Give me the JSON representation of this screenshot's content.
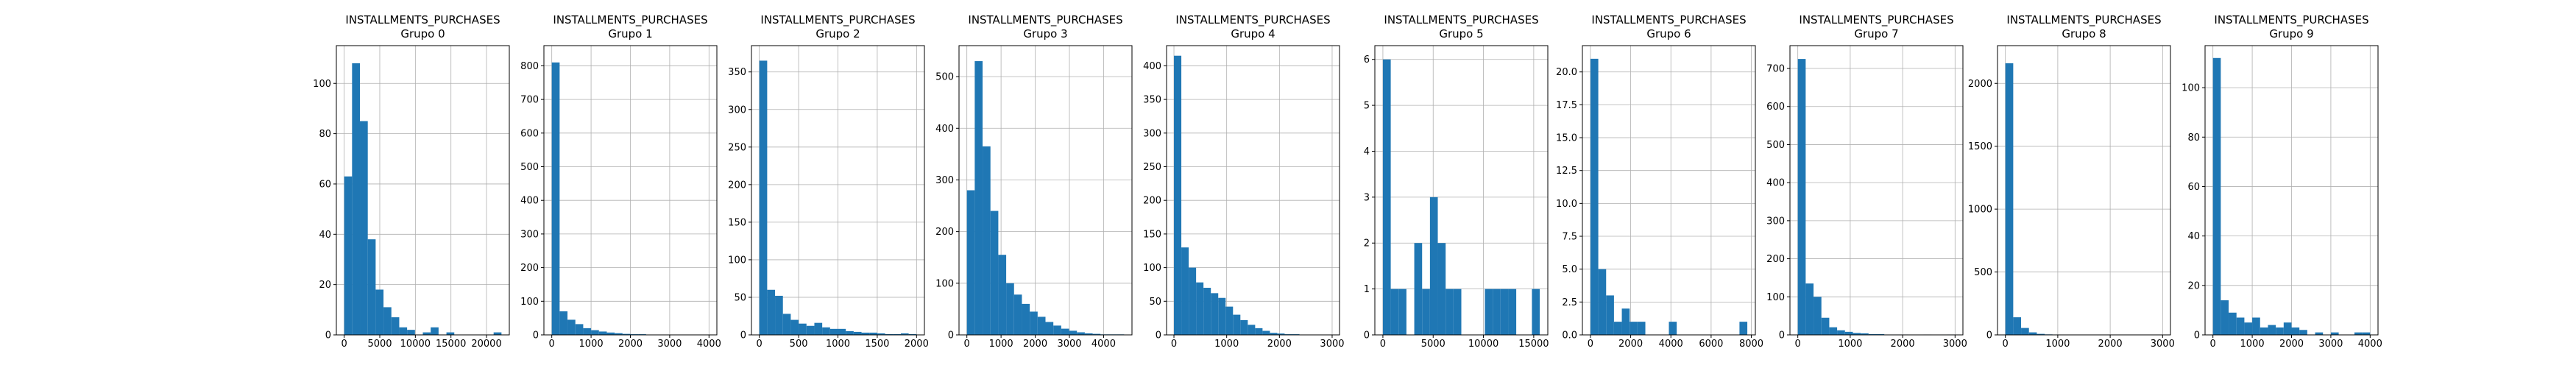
{
  "figure": {
    "background": "#ffffff",
    "bar_color": "#1f77b4",
    "grid_color": "#b0b0b0",
    "bins": 20
  },
  "chart_data": [
    {
      "type": "bar",
      "title_line1": "INSTALLMENTS_PURCHASES",
      "title_line2": "Grupo 0",
      "xlim": [
        -1100,
        23200
      ],
      "ylim": [
        0,
        115
      ],
      "xticks": [
        0,
        5000,
        10000,
        15000,
        20000
      ],
      "xtick_labels": [
        "0",
        "5000",
        "10000",
        "15000",
        "20000"
      ],
      "yticks": [
        0,
        20,
        40,
        60,
        80,
        100
      ],
      "ytick_labels": [
        "0",
        "20",
        "40",
        "60",
        "80",
        "100"
      ],
      "bin_width": 1105,
      "bin_edges_start": 0,
      "values": [
        63,
        108,
        85,
        38,
        18,
        11,
        7,
        3,
        2,
        0,
        1,
        3,
        0,
        1,
        0,
        0,
        0,
        0,
        0,
        1
      ]
    },
    {
      "type": "bar",
      "title_line1": "INSTALLMENTS_PURCHASES",
      "title_line2": "Grupo 1",
      "xlim": [
        -200,
        4200
      ],
      "ylim": [
        0,
        860
      ],
      "xticks": [
        0,
        1000,
        2000,
        3000,
        4000
      ],
      "xtick_labels": [
        "0",
        "1000",
        "2000",
        "3000",
        "4000"
      ],
      "yticks": [
        0,
        100,
        200,
        300,
        400,
        500,
        600,
        700,
        800
      ],
      "ytick_labels": [
        "0",
        "100",
        "200",
        "300",
        "400",
        "500",
        "600",
        "700",
        "800"
      ],
      "bin_width": 200,
      "bin_edges_start": 0,
      "values": [
        810,
        70,
        45,
        32,
        20,
        14,
        10,
        7,
        5,
        3,
        2,
        2,
        1,
        1,
        1,
        0,
        0,
        1,
        0,
        1
      ]
    },
    {
      "type": "bar",
      "title_line1": "INSTALLMENTS_PURCHASES",
      "title_line2": "Grupo 2",
      "xlim": [
        -100,
        2100
      ],
      "ylim": [
        0,
        385
      ],
      "xticks": [
        0,
        500,
        1000,
        1500,
        2000
      ],
      "xtick_labels": [
        "0",
        "500",
        "1000",
        "1500",
        "2000"
      ],
      "yticks": [
        0,
        50,
        100,
        150,
        200,
        250,
        300,
        350
      ],
      "ytick_labels": [
        "0",
        "50",
        "100",
        "150",
        "200",
        "250",
        "300",
        "350"
      ],
      "bin_width": 100,
      "bin_edges_start": 0,
      "values": [
        365,
        60,
        52,
        28,
        20,
        15,
        12,
        16,
        10,
        8,
        8,
        5,
        4,
        3,
        3,
        2,
        1,
        1,
        2,
        1
      ]
    },
    {
      "type": "bar",
      "title_line1": "INSTALLMENTS_PURCHASES",
      "title_line2": "Grupo 3",
      "xlim": [
        -230,
        4830
      ],
      "ylim": [
        0,
        560
      ],
      "xticks": [
        0,
        1000,
        2000,
        3000,
        4000
      ],
      "xtick_labels": [
        "0",
        "1000",
        "2000",
        "3000",
        "4000"
      ],
      "yticks": [
        0,
        100,
        200,
        300,
        400,
        500
      ],
      "ytick_labels": [
        "0",
        "100",
        "200",
        "300",
        "400",
        "500"
      ],
      "bin_width": 230,
      "bin_edges_start": 0,
      "values": [
        280,
        530,
        365,
        240,
        155,
        100,
        78,
        60,
        45,
        35,
        25,
        18,
        12,
        8,
        5,
        3,
        2,
        1,
        1,
        1
      ]
    },
    {
      "type": "bar",
      "title_line1": "INSTALLMENTS_PURCHASES",
      "title_line2": "Grupo 4",
      "xlim": [
        -140,
        3140
      ],
      "ylim": [
        0,
        430
      ],
      "xticks": [
        0,
        1000,
        2000,
        3000
      ],
      "xtick_labels": [
        "0",
        "1000",
        "2000",
        "3000"
      ],
      "yticks": [
        0,
        50,
        100,
        150,
        200,
        250,
        300,
        350,
        400
      ],
      "ytick_labels": [
        "0",
        "50",
        "100",
        "150",
        "200",
        "250",
        "300",
        "350",
        "400"
      ],
      "bin_width": 140,
      "bin_edges_start": 0,
      "values": [
        415,
        130,
        100,
        78,
        70,
        62,
        55,
        42,
        30,
        22,
        15,
        10,
        6,
        3,
        2,
        1,
        1,
        0,
        0,
        0
      ]
    },
    {
      "type": "bar",
      "title_line1": "INSTALLMENTS_PURCHASES",
      "title_line2": "Grupo 5",
      "xlim": [
        -800,
        16400
      ],
      "ylim": [
        0,
        6.3
      ],
      "xticks": [
        0,
        5000,
        10000,
        15000
      ],
      "xtick_labels": [
        "0",
        "5000",
        "10000",
        "15000"
      ],
      "yticks": [
        0,
        1,
        2,
        3,
        4,
        5,
        6
      ],
      "ytick_labels": [
        "0",
        "1",
        "2",
        "3",
        "4",
        "5",
        "6"
      ],
      "bin_width": 780,
      "bin_edges_start": 0,
      "values": [
        6,
        1,
        1,
        0,
        2,
        1,
        3,
        2,
        1,
        1,
        0,
        0,
        0,
        1,
        1,
        1,
        1,
        0,
        0,
        1
      ]
    },
    {
      "type": "bar",
      "title_line1": "INSTALLMENTS_PURCHASES",
      "title_line2": "Grupo 6",
      "xlim": [
        -400,
        8200
      ],
      "ylim": [
        0,
        22
      ],
      "xticks": [
        0,
        2000,
        4000,
        6000,
        8000
      ],
      "xtick_labels": [
        "0",
        "2000",
        "4000",
        "6000",
        "8000"
      ],
      "yticks": [
        0,
        2.5,
        5.0,
        7.5,
        10.0,
        12.5,
        15.0,
        17.5,
        20.0
      ],
      "ytick_labels": [
        "0.0",
        "2.5",
        "5.0",
        "7.5",
        "10.0",
        "12.5",
        "15.0",
        "17.5",
        "20.0"
      ],
      "bin_width": 390,
      "bin_edges_start": 0,
      "values": [
        21,
        5,
        3,
        1,
        2,
        1,
        1,
        0,
        0,
        0,
        1,
        0,
        0,
        0,
        0,
        0,
        0,
        0,
        0,
        1
      ]
    },
    {
      "type": "bar",
      "title_line1": "INSTALLMENTS_PURCHASES",
      "title_line2": "Grupo 7",
      "xlim": [
        -150,
        3150
      ],
      "ylim": [
        0,
        760
      ],
      "xticks": [
        0,
        1000,
        2000,
        3000
      ],
      "xtick_labels": [
        "0",
        "1000",
        "2000",
        "3000"
      ],
      "yticks": [
        0,
        100,
        200,
        300,
        400,
        500,
        600,
        700
      ],
      "ytick_labels": [
        "0",
        "100",
        "200",
        "300",
        "400",
        "500",
        "600",
        "700"
      ],
      "bin_width": 150,
      "bin_edges_start": 0,
      "values": [
        725,
        135,
        100,
        45,
        20,
        12,
        8,
        5,
        4,
        2,
        2,
        1,
        1,
        1,
        0,
        0,
        1,
        0,
        0,
        1
      ]
    },
    {
      "type": "bar",
      "title_line1": "INSTALLMENTS_PURCHASES",
      "title_line2": "Grupo 8",
      "xlim": [
        -150,
        3150
      ],
      "ylim": [
        0,
        2300
      ],
      "xticks": [
        0,
        1000,
        2000,
        3000
      ],
      "xtick_labels": [
        "0",
        "1000",
        "2000",
        "3000"
      ],
      "yticks": [
        0,
        500,
        1000,
        1500,
        2000
      ],
      "ytick_labels": [
        "0",
        "500",
        "1000",
        "1500",
        "2000"
      ],
      "bin_width": 150,
      "bin_edges_start": 0,
      "values": [
        2160,
        140,
        55,
        20,
        8,
        4,
        3,
        2,
        1,
        1,
        0,
        0,
        0,
        0,
        0,
        0,
        0,
        0,
        0,
        1
      ]
    },
    {
      "type": "bar",
      "title_line1": "INSTALLMENTS_PURCHASES",
      "title_line2": "Grupo 9",
      "xlim": [
        -200,
        4200
      ],
      "ylim": [
        0,
        117
      ],
      "xticks": [
        0,
        1000,
        2000,
        3000,
        4000
      ],
      "xtick_labels": [
        "0",
        "1000",
        "2000",
        "3000",
        "4000"
      ],
      "yticks": [
        0,
        20,
        40,
        60,
        80,
        100
      ],
      "ytick_labels": [
        "0",
        "20",
        "40",
        "60",
        "80",
        "100"
      ],
      "bin_width": 200,
      "bin_edges_start": 0,
      "values": [
        112,
        14,
        9,
        7,
        5,
        7,
        3,
        4,
        3,
        5,
        3,
        2,
        0,
        1,
        0,
        1,
        0,
        0,
        1,
        1
      ]
    }
  ]
}
